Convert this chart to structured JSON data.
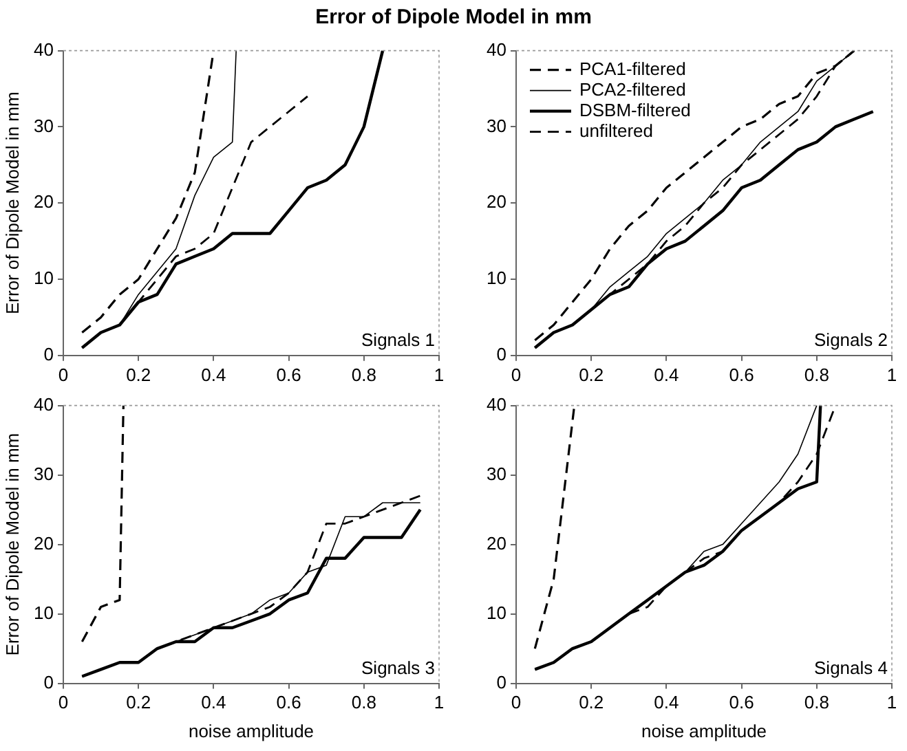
{
  "chart_data": [
    {
      "type": "line",
      "title": "Error of Dipole Model in mm",
      "ylabel": "Error of Dipole Model in mm",
      "annotations": [
        "Signals 1"
      ],
      "xlim": [
        0,
        1
      ],
      "xticks": [
        0,
        0.2,
        0.4,
        0.6,
        0.8,
        1
      ],
      "ylim": [
        0,
        40
      ],
      "yticks": [
        0,
        10,
        20,
        30,
        40
      ],
      "grid": false,
      "legend": false,
      "marker": "none",
      "series": [
        {
          "color": "#000000",
          "line_style": "dashed",
          "x": [
            0.05,
            0.1,
            0.15,
            0.2,
            0.25,
            0.3,
            0.35,
            0.4
          ],
          "values": [
            3,
            5,
            8,
            10,
            14,
            18,
            24,
            40
          ]
        },
        {
          "color": "#000000",
          "line_style": "solid",
          "x": [
            0.05,
            0.1,
            0.15,
            0.2,
            0.25,
            0.3,
            0.35,
            0.4,
            0.45,
            0.46
          ],
          "values": [
            1,
            3,
            4,
            8,
            11,
            14,
            21,
            26,
            28,
            40
          ]
        },
        {
          "color": "#000000",
          "line_style": "solid",
          "x": [
            0.05,
            0.1,
            0.15,
            0.2,
            0.25,
            0.3,
            0.35,
            0.4,
            0.45,
            0.5,
            0.55,
            0.6,
            0.65,
            0.7,
            0.75,
            0.8,
            0.85
          ],
          "values": [
            1,
            3,
            4,
            7,
            8,
            12,
            13,
            14,
            16,
            16,
            16,
            19,
            22,
            23,
            25,
            30,
            40
          ]
        },
        {
          "color": "#000000",
          "line_style": "dashed",
          "x": [
            0.05,
            0.1,
            0.15,
            0.2,
            0.25,
            0.3,
            0.35,
            0.4,
            0.45,
            0.5,
            0.55,
            0.6,
            0.65
          ],
          "values": [
            1,
            3,
            4,
            7,
            10,
            13,
            14,
            16,
            22,
            28,
            30,
            32,
            34
          ]
        }
      ]
    },
    {
      "type": "line",
      "annotations": [
        "Signals 2"
      ],
      "xlim": [
        0,
        1
      ],
      "xticks": [
        0,
        0.2,
        0.4,
        0.6,
        0.8,
        1
      ],
      "ylim": [
        0,
        40
      ],
      "yticks": [
        0,
        10,
        20,
        30,
        40
      ],
      "grid": false,
      "legend": "top left",
      "marker": "none",
      "series": [
        {
          "name": "PCA1-filtered",
          "color": "#000000",
          "line_style": "dashed",
          "x": [
            0.05,
            0.1,
            0.15,
            0.2,
            0.25,
            0.3,
            0.35,
            0.4,
            0.45,
            0.5,
            0.55,
            0.6,
            0.65,
            0.7,
            0.75,
            0.8,
            0.85,
            0.9
          ],
          "values": [
            2,
            4,
            7,
            10,
            14,
            17,
            19,
            22,
            24,
            26,
            28,
            30,
            31,
            33,
            34,
            37,
            38,
            40
          ]
        },
        {
          "name": "PCA2-filtered",
          "color": "#000000",
          "line_style": "solid",
          "x": [
            0.05,
            0.1,
            0.15,
            0.2,
            0.25,
            0.3,
            0.35,
            0.4,
            0.45,
            0.5,
            0.55,
            0.6,
            0.65,
            0.7,
            0.75,
            0.8,
            0.85,
            0.9
          ],
          "values": [
            1,
            3,
            4,
            6,
            9,
            11,
            13,
            16,
            18,
            20,
            23,
            25,
            28,
            30,
            32,
            36,
            38,
            40
          ]
        },
        {
          "name": "DSBM-filtered",
          "color": "#000000",
          "line_style": "solid",
          "x": [
            0.05,
            0.1,
            0.15,
            0.2,
            0.25,
            0.3,
            0.35,
            0.4,
            0.45,
            0.5,
            0.55,
            0.6,
            0.65,
            0.7,
            0.75,
            0.8,
            0.85,
            0.9,
            0.95
          ],
          "values": [
            1,
            3,
            4,
            6,
            8,
            9,
            12,
            14,
            15,
            17,
            19,
            22,
            23,
            25,
            27,
            28,
            30,
            31,
            32
          ]
        },
        {
          "name": "unfiltered",
          "color": "#000000",
          "line_style": "dashed",
          "x": [
            0.05,
            0.1,
            0.15,
            0.2,
            0.25,
            0.3,
            0.35,
            0.4,
            0.45,
            0.5,
            0.55,
            0.6,
            0.65,
            0.7,
            0.75,
            0.8,
            0.85,
            0.9
          ],
          "values": [
            1,
            3,
            4,
            6,
            8,
            10,
            12,
            15,
            17,
            20,
            22,
            25,
            27,
            29,
            31,
            34,
            38,
            40
          ]
        }
      ]
    },
    {
      "type": "line",
      "ylabel": "Error of Dipole Model in mm",
      "xlabel": "noise amplitude",
      "annotations": [
        "Signals 3"
      ],
      "xlim": [
        0,
        1
      ],
      "xticks": [
        0,
        0.2,
        0.4,
        0.6,
        0.8,
        1
      ],
      "ylim": [
        0,
        40
      ],
      "yticks": [
        0,
        10,
        20,
        30,
        40
      ],
      "grid": false,
      "legend": false,
      "marker": "none",
      "series": [
        {
          "color": "#000000",
          "line_style": "dashed",
          "x": [
            0.05,
            0.1,
            0.15,
            0.16
          ],
          "values": [
            6,
            11,
            12,
            40
          ]
        },
        {
          "color": "#000000",
          "line_style": "solid",
          "x": [
            0.05,
            0.1,
            0.15,
            0.2,
            0.25,
            0.3,
            0.35,
            0.4,
            0.45,
            0.5,
            0.55,
            0.6,
            0.65,
            0.7,
            0.75,
            0.8,
            0.85,
            0.9,
            0.95
          ],
          "values": [
            1,
            2,
            3,
            3,
            5,
            6,
            7,
            8,
            9,
            10,
            12,
            13,
            16,
            17,
            24,
            24,
            26,
            26,
            26
          ]
        },
        {
          "color": "#000000",
          "line_style": "solid",
          "x": [
            0.05,
            0.1,
            0.15,
            0.2,
            0.25,
            0.3,
            0.35,
            0.4,
            0.45,
            0.5,
            0.55,
            0.6,
            0.65,
            0.7,
            0.75,
            0.8,
            0.85,
            0.9,
            0.95
          ],
          "values": [
            1,
            2,
            3,
            3,
            5,
            6,
            6,
            8,
            8,
            9,
            10,
            12,
            13,
            18,
            18,
            21,
            21,
            21,
            25
          ]
        },
        {
          "color": "#000000",
          "line_style": "dashed",
          "x": [
            0.05,
            0.1,
            0.15,
            0.2,
            0.25,
            0.3,
            0.35,
            0.4,
            0.45,
            0.5,
            0.55,
            0.6,
            0.65,
            0.7,
            0.75,
            0.8,
            0.85,
            0.9,
            0.95
          ],
          "values": [
            1,
            2,
            3,
            3,
            5,
            6,
            7,
            8,
            9,
            10,
            11,
            13,
            16,
            23,
            23,
            24,
            25,
            26,
            27
          ]
        }
      ]
    },
    {
      "type": "line",
      "xlabel": "noise amplitude",
      "annotations": [
        "Signals 4"
      ],
      "xlim": [
        0,
        1
      ],
      "xticks": [
        0,
        0.2,
        0.4,
        0.6,
        0.8,
        1
      ],
      "ylim": [
        0,
        40
      ],
      "yticks": [
        0,
        10,
        20,
        30,
        40
      ],
      "grid": false,
      "legend": false,
      "marker": "none",
      "series": [
        {
          "color": "#000000",
          "line_style": "dashed",
          "x": [
            0.05,
            0.1,
            0.155
          ],
          "values": [
            5,
            15,
            40
          ]
        },
        {
          "color": "#000000",
          "line_style": "solid",
          "x": [
            0.05,
            0.1,
            0.15,
            0.2,
            0.25,
            0.3,
            0.35,
            0.4,
            0.45,
            0.5,
            0.55,
            0.6,
            0.65,
            0.7,
            0.75,
            0.8
          ],
          "values": [
            2,
            3,
            5,
            6,
            8,
            10,
            12,
            14,
            16,
            19,
            20,
            23,
            26,
            29,
            33,
            40
          ]
        },
        {
          "color": "#000000",
          "line_style": "solid",
          "x": [
            0.05,
            0.1,
            0.15,
            0.2,
            0.25,
            0.3,
            0.35,
            0.4,
            0.45,
            0.5,
            0.55,
            0.6,
            0.65,
            0.7,
            0.75,
            0.8,
            0.81
          ],
          "values": [
            2,
            3,
            5,
            6,
            8,
            10,
            12,
            14,
            16,
            17,
            19,
            22,
            24,
            26,
            28,
            29,
            40
          ]
        },
        {
          "color": "#000000",
          "line_style": "dashed",
          "x": [
            0.3,
            0.35,
            0.4,
            0.45,
            0.5,
            0.55,
            0.6,
            0.65,
            0.7,
            0.75,
            0.8,
            0.85
          ],
          "values": [
            10,
            11,
            14,
            16,
            18,
            19,
            22,
            24,
            26,
            29,
            33,
            40
          ]
        }
      ]
    }
  ]
}
